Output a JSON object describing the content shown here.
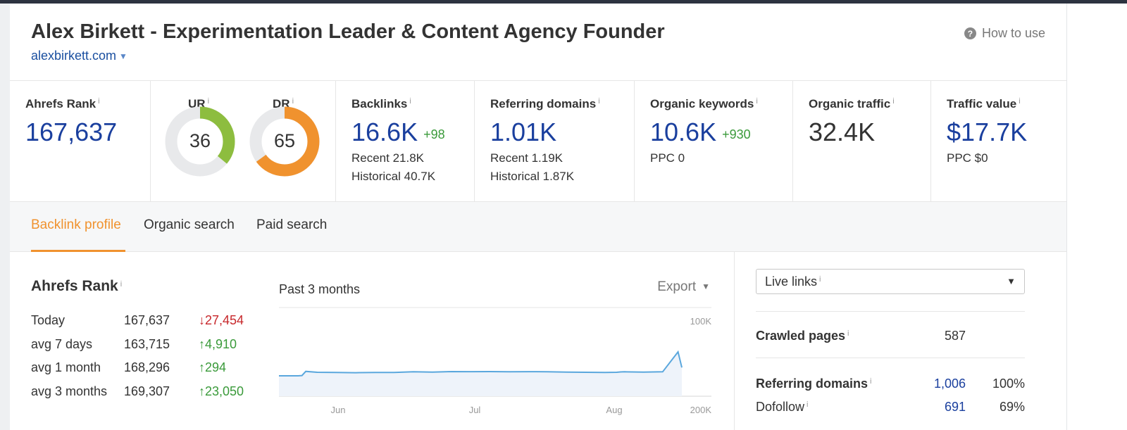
{
  "header": {
    "title": "Alex Birkett - Experimentation Leader & Content Agency Founder",
    "domain": "alexbirkett.com",
    "how_to_use": "How to use"
  },
  "metrics": {
    "ahrefs_rank": {
      "label": "Ahrefs Rank",
      "value": "167,637"
    },
    "ur": {
      "label": "UR",
      "value": "36",
      "score": 36,
      "color": "#8dbd3f"
    },
    "dr": {
      "label": "DR",
      "value": "65",
      "score": 65,
      "color": "#f0922e"
    },
    "backlinks": {
      "label": "Backlinks",
      "value": "16.6K",
      "delta": "+98",
      "recent": "Recent 21.8K",
      "historical": "Historical 40.7K"
    },
    "referring_domains": {
      "label": "Referring domains",
      "value": "1.01K",
      "recent": "Recent 1.19K",
      "historical": "Historical 1.87K"
    },
    "organic_keywords": {
      "label": "Organic keywords",
      "value": "10.6K",
      "delta": "+930",
      "ppc": "PPC 0"
    },
    "organic_traffic": {
      "label": "Organic traffic",
      "value": "32.4K"
    },
    "traffic_value": {
      "label": "Traffic value",
      "value": "$17.7K",
      "ppc": "PPC $0"
    }
  },
  "info_marker": "i",
  "tabs": [
    {
      "label": "Backlink profile",
      "active": true
    },
    {
      "label": "Organic search",
      "active": false
    },
    {
      "label": "Paid search",
      "active": false
    }
  ],
  "rank_panel": {
    "title": "Ahrefs Rank",
    "rows": [
      {
        "period": "Today",
        "value": "167,637",
        "change": "↓27,454",
        "direction": "down"
      },
      {
        "period": "avg 7 days",
        "value": "163,715",
        "change": "↑4,910",
        "direction": "up"
      },
      {
        "period": "avg 1 month",
        "value": "168,296",
        "change": "↑294",
        "direction": "up"
      },
      {
        "period": "avg 3 months",
        "value": "169,307",
        "change": "↑23,050",
        "direction": "up"
      }
    ]
  },
  "chart_panel": {
    "title": "Past 3 months",
    "export_label": "Export"
  },
  "chart_data": {
    "type": "area",
    "title": "Past 3 months",
    "x_ticks": [
      "Jun",
      "Jul",
      "Aug"
    ],
    "y_ticks": [
      "100K",
      "200K"
    ],
    "y_axis": "inverted rank (lower is better)",
    "ylim": [
      200000,
      100000
    ],
    "series": [
      {
        "name": "Ahrefs Rank",
        "x_day": [
          0,
          5,
          6,
          7,
          10,
          15,
          20,
          25,
          30,
          35,
          40,
          45,
          50,
          55,
          60,
          65,
          70,
          75,
          80,
          85,
          88,
          89,
          90,
          95,
          100,
          104,
          105
        ],
        "values": [
          177000,
          177000,
          176700,
          172000,
          173000,
          173200,
          173500,
          173200,
          173200,
          172500,
          172800,
          172200,
          172300,
          172200,
          172500,
          172300,
          172400,
          172800,
          173000,
          173200,
          173000,
          172600,
          172500,
          172800,
          172500,
          150000,
          167637
        ]
      }
    ]
  },
  "right_panel": {
    "select_label": "Live links",
    "crawled_pages": {
      "label": "Crawled pages",
      "value": "587"
    },
    "referring_domains": {
      "label": "Referring domains",
      "value": "1,006",
      "percent": "100%"
    },
    "dofollow": {
      "label": "Dofollow",
      "value": "691",
      "percent": "69%"
    }
  }
}
